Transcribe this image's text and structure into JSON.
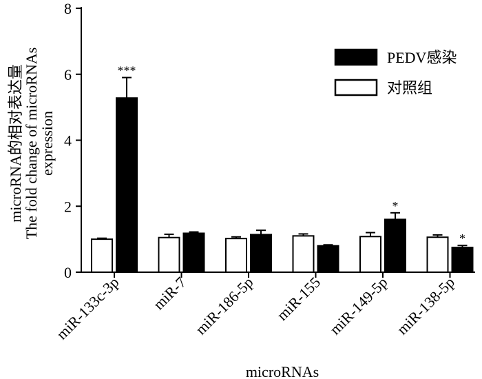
{
  "chart_data": {
    "type": "bar",
    "categories": [
      "miR-133c-3p",
      "miR-7",
      "miR-186-5p",
      "miR-155",
      "miR-149-5p",
      "miR-138-5p"
    ],
    "series": [
      {
        "name": "对照组",
        "values": [
          1.0,
          1.05,
          1.02,
          1.1,
          1.08,
          1.06
        ],
        "errors": [
          0.03,
          0.1,
          0.05,
          0.06,
          0.12,
          0.07
        ],
        "fill": "#ffffff",
        "stroke": "#000000"
      },
      {
        "name": "PEDV感染",
        "values": [
          5.28,
          1.18,
          1.14,
          0.8,
          1.6,
          0.75
        ],
        "errors": [
          0.62,
          0.04,
          0.13,
          0.03,
          0.2,
          0.06
        ],
        "fill": "#000000",
        "stroke": "#000000"
      }
    ],
    "significance": [
      "***",
      "",
      "",
      "",
      "*",
      "*"
    ],
    "legend_order": [
      "PEDV感染",
      "对照组"
    ],
    "xlabel": "microRNAs",
    "ylabel_lines": [
      "microRNA的相对表达量",
      "The fold change of microRNAs",
      "expression"
    ],
    "yticks": [
      0,
      2,
      4,
      6,
      8
    ],
    "ylim": [
      0,
      8
    ],
    "grid": false,
    "legend_position": "top-right"
  }
}
